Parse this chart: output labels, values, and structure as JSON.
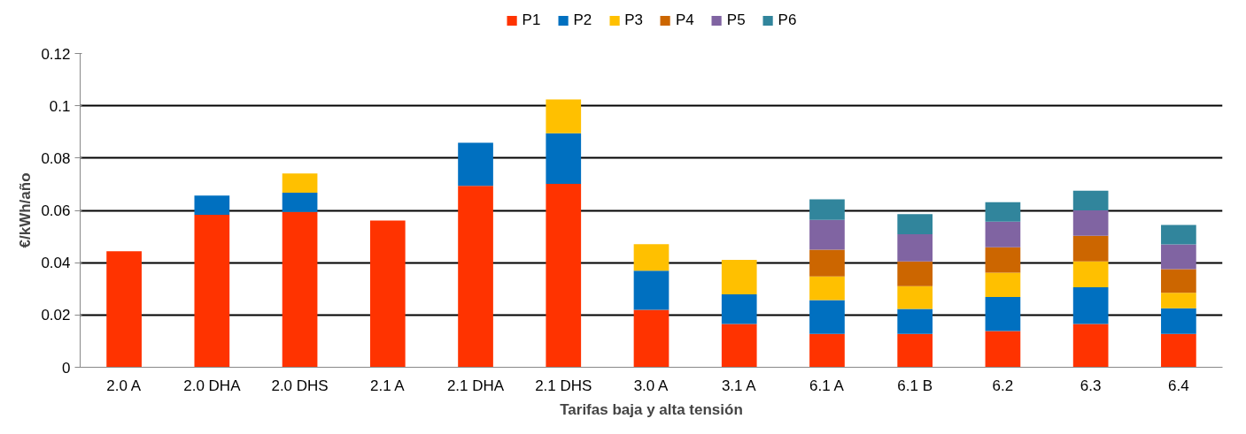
{
  "chart_data": {
    "type": "bar",
    "stacked": true,
    "xlabel": "Tarifas baja y alta tensión",
    "ylabel": "€/kWh/año",
    "categories": [
      "2.0 A",
      "2.0 DHA",
      "2.0 DHS",
      "2.1 A",
      "2.1 DHA",
      "2.1 DHS",
      "3.0 A",
      "3.1 A",
      "6.1 A",
      "6.1 B",
      "6.2",
      "6.3",
      "6.4"
    ],
    "series": [
      {
        "name": "P1",
        "color": "#ff3300",
        "values": [
          0.0444,
          0.0583,
          0.0594,
          0.0561,
          0.0694,
          0.0701,
          0.022,
          0.0166,
          0.0128,
          0.0128,
          0.0139,
          0.0166,
          0.0128
        ]
      },
      {
        "name": "P2",
        "color": "#0070c0",
        "values": [
          null,
          0.0074,
          0.0074,
          null,
          0.0165,
          0.0194,
          0.0149,
          0.0113,
          0.0129,
          0.0095,
          0.013,
          0.014,
          0.0098
        ]
      },
      {
        "name": "P3",
        "color": "#ffc000",
        "values": [
          null,
          null,
          0.0073,
          null,
          null,
          0.0129,
          0.0102,
          0.0132,
          0.009,
          0.0087,
          0.0093,
          0.0099,
          0.0059
        ]
      },
      {
        "name": "P4",
        "color": "#cc6600",
        "values": [
          null,
          null,
          null,
          null,
          null,
          null,
          null,
          null,
          0.0103,
          0.0095,
          0.0097,
          0.0098,
          0.009
        ]
      },
      {
        "name": "P5",
        "color": "#8064a2",
        "values": [
          null,
          null,
          null,
          null,
          null,
          null,
          null,
          null,
          0.0114,
          0.0104,
          0.0098,
          0.0097,
          0.0095
        ]
      },
      {
        "name": "P6",
        "color": "#31859c",
        "values": [
          null,
          null,
          null,
          null,
          null,
          null,
          null,
          null,
          0.0078,
          0.0077,
          0.0074,
          0.0075,
          0.0074
        ]
      }
    ],
    "ylim": [
      0,
      0.12
    ],
    "yticks": [
      0,
      0.02,
      0.04,
      0.06,
      0.08,
      0.1,
      0.12
    ],
    "grid": "y",
    "legend": "top"
  }
}
